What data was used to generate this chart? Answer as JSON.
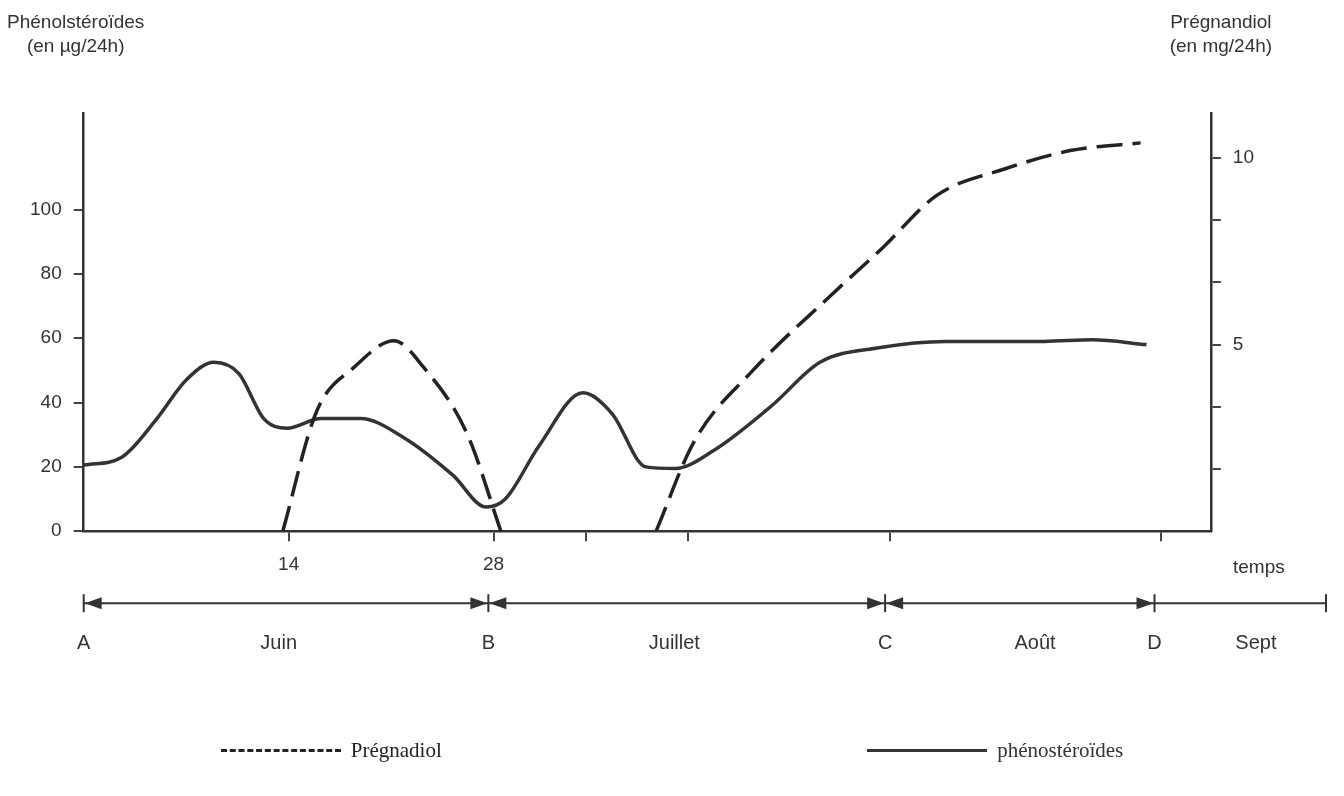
{
  "chart_data": {
    "type": "line",
    "xlabel": "temps",
    "ylabel": "Phénolstéroïdes\n(en µg/24h)",
    "y2label": "Prégnandiol\n(en mg/24h)",
    "xlim": [
      0,
      77
    ],
    "xticks": [
      {
        "value": 14,
        "label": "14"
      },
      {
        "value": 28,
        "label": "28"
      },
      {
        "value": 34.3,
        "label": null
      },
      {
        "value": 41.3,
        "label": null
      },
      {
        "value": 55.1,
        "label": null
      },
      {
        "value": 73.6,
        "label": null
      }
    ],
    "ylim": [
      0,
      130
    ],
    "yticks": [
      0,
      20,
      40,
      60,
      80,
      100
    ],
    "y2lim": [
      0,
      11.2
    ],
    "y2ticks": [
      {
        "value": 1.67,
        "label": null
      },
      {
        "value": 3.33,
        "label": null
      },
      5,
      {
        "value": 6.67,
        "label": null
      },
      {
        "value": 8.33,
        "label": null
      },
      10
    ],
    "grid": false,
    "legend": "bottom",
    "marker": "none",
    "series": [
      {
        "name": "Prégnadiol",
        "color": "#222222",
        "axis": "y2",
        "line_style": "dashed",
        "x": [
          13.6,
          15.9,
          18.5,
          21.2,
          23.2,
          26.2,
          28.5,
          null,
          39.1,
          41.7,
          45.7,
          51,
          54.6,
          58.3,
          62.9,
          67.5,
          72.2
        ],
        "values": [
          0,
          3.2,
          4.4,
          5.1,
          4.4,
          2.6,
          0,
          null,
          0,
          2.4,
          4.3,
          6.3,
          7.6,
          9.0,
          9.7,
          10.2,
          10.4
        ]
      },
      {
        "name": "phénostéroïdes",
        "color": "#333333",
        "axis": "y",
        "line_style": "solid",
        "x": [
          0,
          2.6,
          5.0,
          7.0,
          8.9,
          10.6,
          12.3,
          13.9,
          16.2,
          18.9,
          21.9,
          25.2,
          27.5,
          28.8,
          31.1,
          34.1,
          36.1,
          38.4,
          40.4,
          43.0,
          47.0,
          50.3,
          54.3,
          58.9,
          65.6,
          68.9,
          72.6
        ],
        "values": [
          20.5,
          23,
          35,
          47,
          52.5,
          49,
          35,
          32,
          35,
          35,
          29,
          17.5,
          7.5,
          10,
          26.5,
          43,
          36.5,
          20,
          19.5,
          25,
          39,
          52.5,
          57,
          59,
          59,
          59.5,
          58
        ]
      }
    ],
    "annotations": [
      "A",
      "Juin",
      "B",
      "Juillet",
      "C",
      "Août",
      "D",
      "Sept"
    ]
  }
}
